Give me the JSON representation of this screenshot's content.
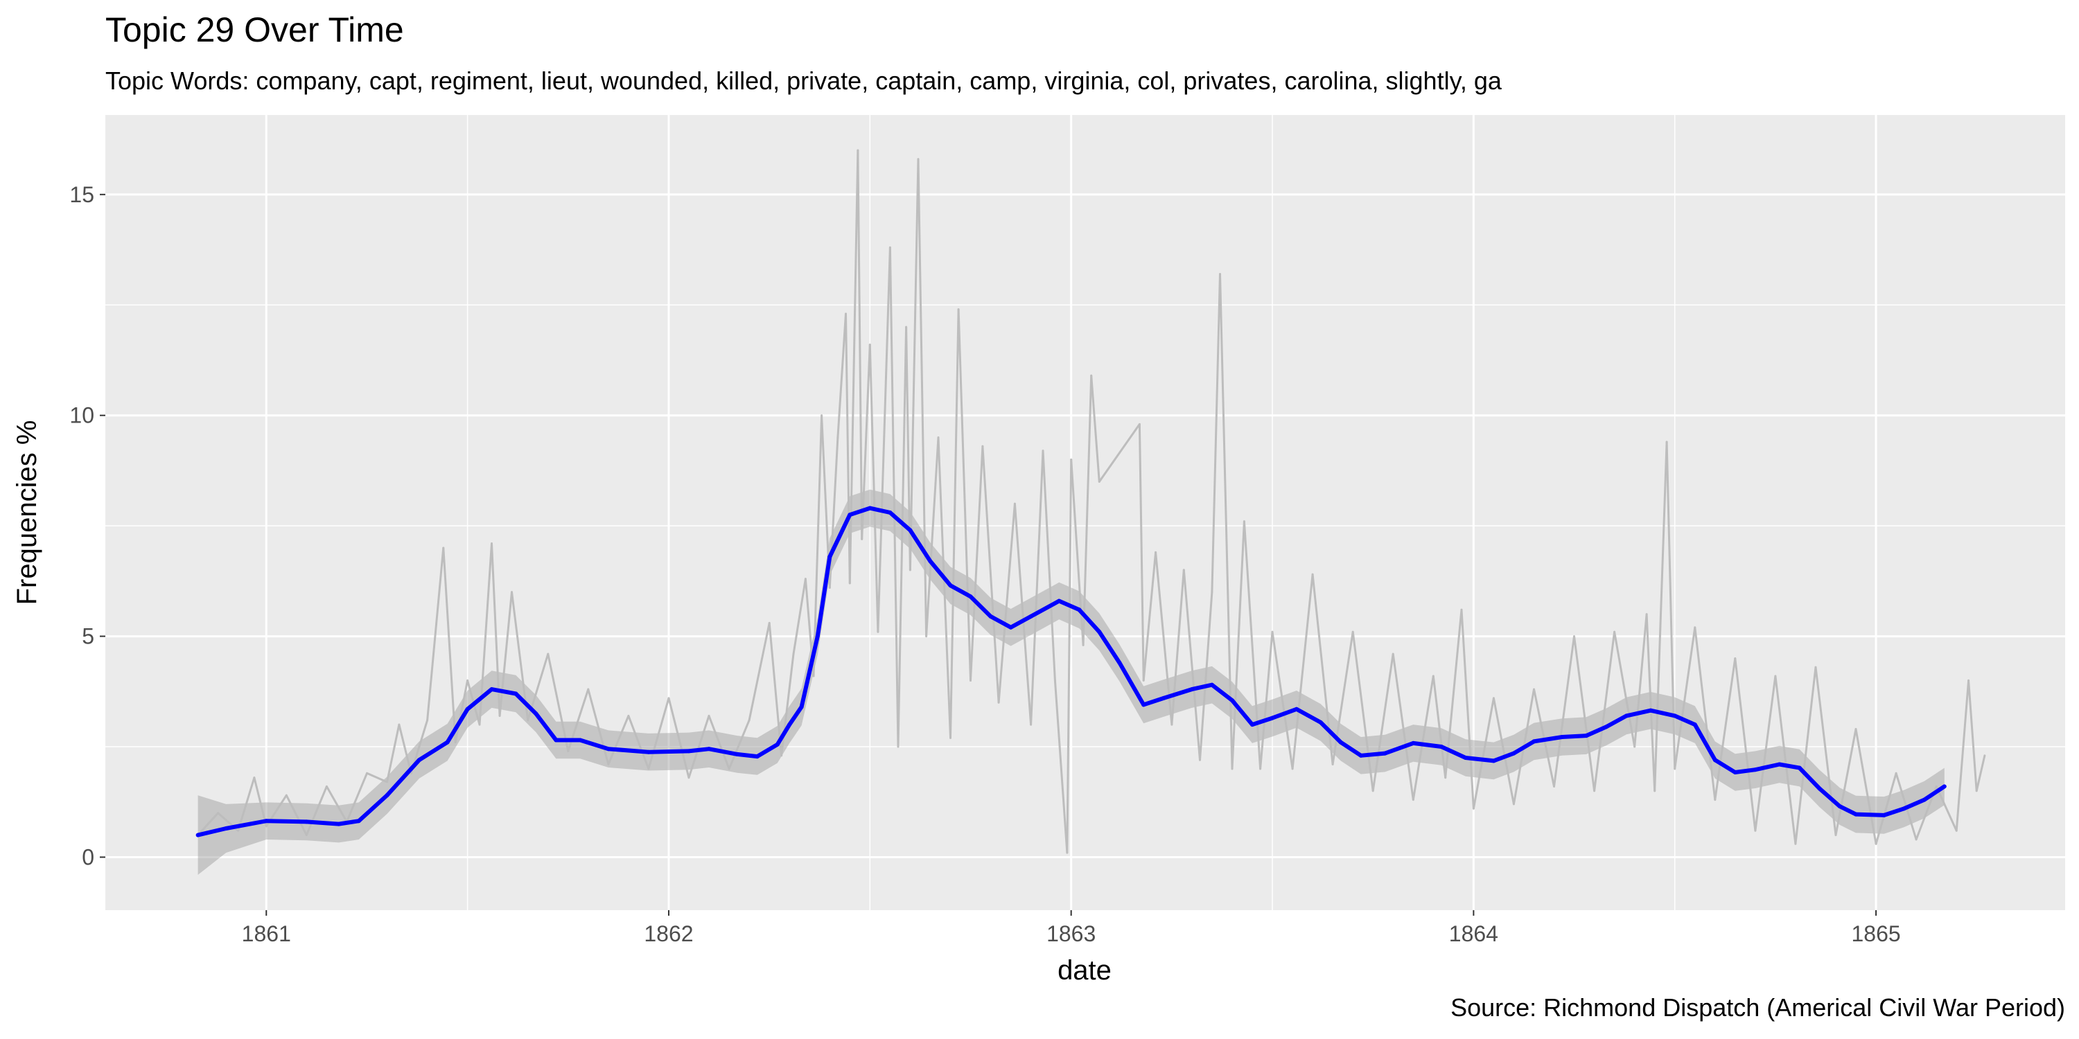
{
  "chart_data": {
    "type": "line",
    "title": "Topic 29 Over Time",
    "subtitle": "Topic Words: company, capt, regiment, lieut, wounded, killed, private, captain, camp, virginia, col, privates, carolina, slightly, ga",
    "caption": "Source: Richmond Dispatch (Americal Civil War Period)",
    "xlabel": "date",
    "ylabel": "Frequencies %",
    "xlim": [
      1860.6,
      1865.47
    ],
    "ylim": [
      -1.2,
      16.8
    ],
    "x_ticks": [
      1861,
      1862,
      1863,
      1864,
      1865
    ],
    "x_tick_labels": [
      "1861",
      "1862",
      "1863",
      "1864",
      "1865"
    ],
    "y_ticks": [
      0,
      5,
      10,
      15
    ],
    "y_tick_labels": [
      "0",
      "5",
      "10",
      "15"
    ],
    "grid": true,
    "series": [
      {
        "kind": "raw",
        "color": "#bdbdbd",
        "values": [
          [
            1860.83,
            0.5
          ],
          [
            1860.88,
            1.0
          ],
          [
            1860.93,
            0.6
          ],
          [
            1860.97,
            1.8
          ],
          [
            1861.0,
            0.7
          ],
          [
            1861.05,
            1.4
          ],
          [
            1861.1,
            0.5
          ],
          [
            1861.15,
            1.6
          ],
          [
            1861.2,
            0.8
          ],
          [
            1861.25,
            1.9
          ],
          [
            1861.3,
            1.7
          ],
          [
            1861.33,
            3.0
          ],
          [
            1861.36,
            1.9
          ],
          [
            1861.4,
            3.1
          ],
          [
            1861.44,
            7.0
          ],
          [
            1861.47,
            2.6
          ],
          [
            1861.5,
            4.0
          ],
          [
            1861.53,
            3.0
          ],
          [
            1861.56,
            7.1
          ],
          [
            1861.58,
            3.2
          ],
          [
            1861.61,
            6.0
          ],
          [
            1861.65,
            3.1
          ],
          [
            1861.7,
            4.6
          ],
          [
            1861.75,
            2.4
          ],
          [
            1861.8,
            3.8
          ],
          [
            1861.85,
            2.1
          ],
          [
            1861.9,
            3.2
          ],
          [
            1861.95,
            2.0
          ],
          [
            1862.0,
            3.6
          ],
          [
            1862.05,
            1.8
          ],
          [
            1862.1,
            3.2
          ],
          [
            1862.15,
            2.0
          ],
          [
            1862.2,
            3.1
          ],
          [
            1862.25,
            5.3
          ],
          [
            1862.28,
            2.3
          ],
          [
            1862.31,
            4.6
          ],
          [
            1862.34,
            6.3
          ],
          [
            1862.36,
            4.1
          ],
          [
            1862.38,
            10.0
          ],
          [
            1862.4,
            6.1
          ],
          [
            1862.42,
            9.5
          ],
          [
            1862.44,
            12.3
          ],
          [
            1862.45,
            6.2
          ],
          [
            1862.47,
            16.0
          ],
          [
            1862.48,
            7.2
          ],
          [
            1862.5,
            11.6
          ],
          [
            1862.52,
            5.1
          ],
          [
            1862.55,
            13.8
          ],
          [
            1862.57,
            2.5
          ],
          [
            1862.59,
            12.0
          ],
          [
            1862.6,
            6.5
          ],
          [
            1862.62,
            15.8
          ],
          [
            1862.64,
            5.0
          ],
          [
            1862.67,
            9.5
          ],
          [
            1862.7,
            2.7
          ],
          [
            1862.72,
            12.4
          ],
          [
            1862.75,
            4.0
          ],
          [
            1862.78,
            9.3
          ],
          [
            1862.82,
            3.5
          ],
          [
            1862.86,
            8.0
          ],
          [
            1862.9,
            3.0
          ],
          [
            1862.93,
            9.2
          ],
          [
            1862.96,
            4.0
          ],
          [
            1862.99,
            0.1
          ],
          [
            1863.0,
            9.0
          ],
          [
            1863.03,
            4.8
          ],
          [
            1863.05,
            10.9
          ],
          [
            1863.07,
            8.5
          ],
          [
            1863.17,
            9.8
          ],
          [
            1863.18,
            4.0
          ],
          [
            1863.21,
            6.9
          ],
          [
            1863.25,
            3.0
          ],
          [
            1863.28,
            6.5
          ],
          [
            1863.32,
            2.2
          ],
          [
            1863.35,
            6.0
          ],
          [
            1863.37,
            13.2
          ],
          [
            1863.4,
            2.0
          ],
          [
            1863.43,
            7.6
          ],
          [
            1863.47,
            2.0
          ],
          [
            1863.5,
            5.1
          ],
          [
            1863.55,
            2.0
          ],
          [
            1863.6,
            6.4
          ],
          [
            1863.65,
            2.1
          ],
          [
            1863.7,
            5.1
          ],
          [
            1863.75,
            1.5
          ],
          [
            1863.8,
            4.6
          ],
          [
            1863.85,
            1.3
          ],
          [
            1863.9,
            4.1
          ],
          [
            1863.93,
            1.8
          ],
          [
            1863.97,
            5.6
          ],
          [
            1864.0,
            1.1
          ],
          [
            1864.05,
            3.6
          ],
          [
            1864.1,
            1.2
          ],
          [
            1864.15,
            3.8
          ],
          [
            1864.2,
            1.6
          ],
          [
            1864.25,
            5.0
          ],
          [
            1864.3,
            1.5
          ],
          [
            1864.35,
            5.1
          ],
          [
            1864.4,
            2.5
          ],
          [
            1864.43,
            5.5
          ],
          [
            1864.45,
            1.5
          ],
          [
            1864.48,
            9.4
          ],
          [
            1864.5,
            2.0
          ],
          [
            1864.55,
            5.2
          ],
          [
            1864.6,
            1.3
          ],
          [
            1864.65,
            4.5
          ],
          [
            1864.7,
            0.6
          ],
          [
            1864.75,
            4.1
          ],
          [
            1864.8,
            0.3
          ],
          [
            1864.85,
            4.3
          ],
          [
            1864.9,
            0.5
          ],
          [
            1864.95,
            2.9
          ],
          [
            1865.0,
            0.3
          ],
          [
            1865.05,
            1.9
          ],
          [
            1865.1,
            0.4
          ],
          [
            1865.15,
            1.6
          ],
          [
            1865.2,
            0.6
          ],
          [
            1865.23,
            4.0
          ],
          [
            1865.25,
            1.5
          ],
          [
            1865.27,
            2.3
          ]
        ]
      },
      {
        "kind": "smooth",
        "color": "#0000ff",
        "band_color": "#999999",
        "values": [
          [
            1860.83,
            0.5
          ],
          [
            1860.9,
            0.65
          ],
          [
            1861.0,
            0.82
          ],
          [
            1861.1,
            0.8
          ],
          [
            1861.18,
            0.75
          ],
          [
            1861.23,
            0.82
          ],
          [
            1861.3,
            1.4
          ],
          [
            1861.38,
            2.2
          ],
          [
            1861.45,
            2.6
          ],
          [
            1861.5,
            3.35
          ],
          [
            1861.56,
            3.8
          ],
          [
            1861.62,
            3.7
          ],
          [
            1861.67,
            3.25
          ],
          [
            1861.72,
            2.65
          ],
          [
            1861.78,
            2.65
          ],
          [
            1861.85,
            2.45
          ],
          [
            1861.95,
            2.38
          ],
          [
            1862.05,
            2.4
          ],
          [
            1862.1,
            2.45
          ],
          [
            1862.17,
            2.33
          ],
          [
            1862.22,
            2.28
          ],
          [
            1862.27,
            2.55
          ],
          [
            1862.3,
            3.0
          ],
          [
            1862.33,
            3.4
          ],
          [
            1862.37,
            5.0
          ],
          [
            1862.4,
            6.8
          ],
          [
            1862.45,
            7.75
          ],
          [
            1862.5,
            7.9
          ],
          [
            1862.55,
            7.8
          ],
          [
            1862.6,
            7.4
          ],
          [
            1862.65,
            6.7
          ],
          [
            1862.7,
            6.15
          ],
          [
            1862.75,
            5.9
          ],
          [
            1862.8,
            5.45
          ],
          [
            1862.85,
            5.2
          ],
          [
            1862.9,
            5.45
          ],
          [
            1862.97,
            5.8
          ],
          [
            1863.02,
            5.6
          ],
          [
            1863.07,
            5.1
          ],
          [
            1863.12,
            4.4
          ],
          [
            1863.18,
            3.45
          ],
          [
            1863.23,
            3.6
          ],
          [
            1863.3,
            3.8
          ],
          [
            1863.35,
            3.9
          ],
          [
            1863.4,
            3.55
          ],
          [
            1863.45,
            3.0
          ],
          [
            1863.5,
            3.15
          ],
          [
            1863.56,
            3.35
          ],
          [
            1863.62,
            3.05
          ],
          [
            1863.67,
            2.6
          ],
          [
            1863.72,
            2.3
          ],
          [
            1863.78,
            2.35
          ],
          [
            1863.85,
            2.58
          ],
          [
            1863.92,
            2.5
          ],
          [
            1863.98,
            2.25
          ],
          [
            1864.05,
            2.18
          ],
          [
            1864.1,
            2.35
          ],
          [
            1864.15,
            2.62
          ],
          [
            1864.22,
            2.72
          ],
          [
            1864.28,
            2.75
          ],
          [
            1864.33,
            2.95
          ],
          [
            1864.38,
            3.2
          ],
          [
            1864.44,
            3.32
          ],
          [
            1864.5,
            3.2
          ],
          [
            1864.55,
            3.0
          ],
          [
            1864.6,
            2.2
          ],
          [
            1864.65,
            1.92
          ],
          [
            1864.7,
            1.98
          ],
          [
            1864.76,
            2.1
          ],
          [
            1864.81,
            2.02
          ],
          [
            1864.86,
            1.55
          ],
          [
            1864.91,
            1.15
          ],
          [
            1864.95,
            0.97
          ],
          [
            1865.02,
            0.95
          ],
          [
            1865.07,
            1.1
          ],
          [
            1865.12,
            1.3
          ],
          [
            1865.17,
            1.6
          ]
        ]
      }
    ]
  }
}
